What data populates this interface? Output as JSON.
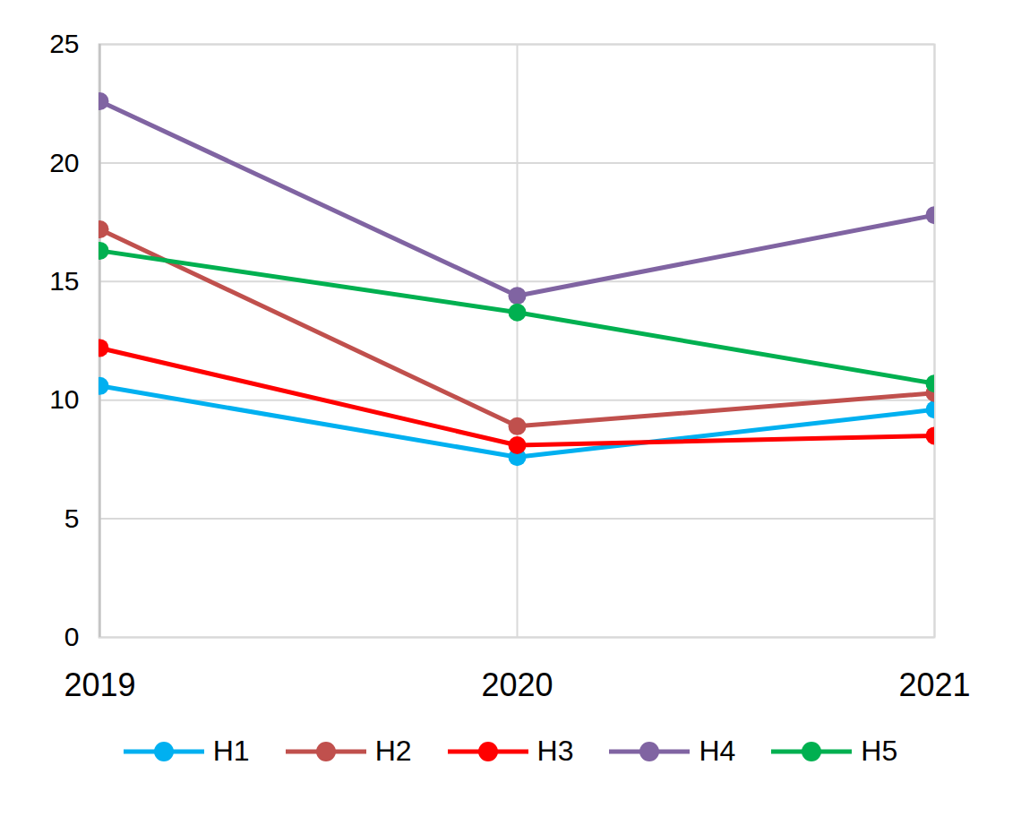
{
  "chart_data": {
    "type": "line",
    "categories": [
      "2019",
      "2020",
      "2021"
    ],
    "series": [
      {
        "name": "H1",
        "color": "#00b0f0",
        "values": [
          10.6,
          7.6,
          9.6
        ],
        "marker": "circle"
      },
      {
        "name": "H2",
        "color": "#c0504d",
        "values": [
          17.2,
          8.9,
          10.3
        ],
        "marker": "circle"
      },
      {
        "name": "H3",
        "color": "#ff0000",
        "values": [
          12.2,
          8.1,
          8.5
        ],
        "marker": "circle"
      },
      {
        "name": "H4",
        "color": "#8064a2",
        "values": [
          22.6,
          14.4,
          17.8
        ],
        "marker": "circle"
      },
      {
        "name": "H5",
        "color": "#00b050",
        "values": [
          16.3,
          13.7,
          10.7
        ],
        "marker": "circle"
      }
    ],
    "ylim": [
      0,
      25
    ],
    "yticks": [
      0,
      5,
      10,
      15,
      20,
      25
    ],
    "grid": true,
    "legend": "bottom"
  }
}
